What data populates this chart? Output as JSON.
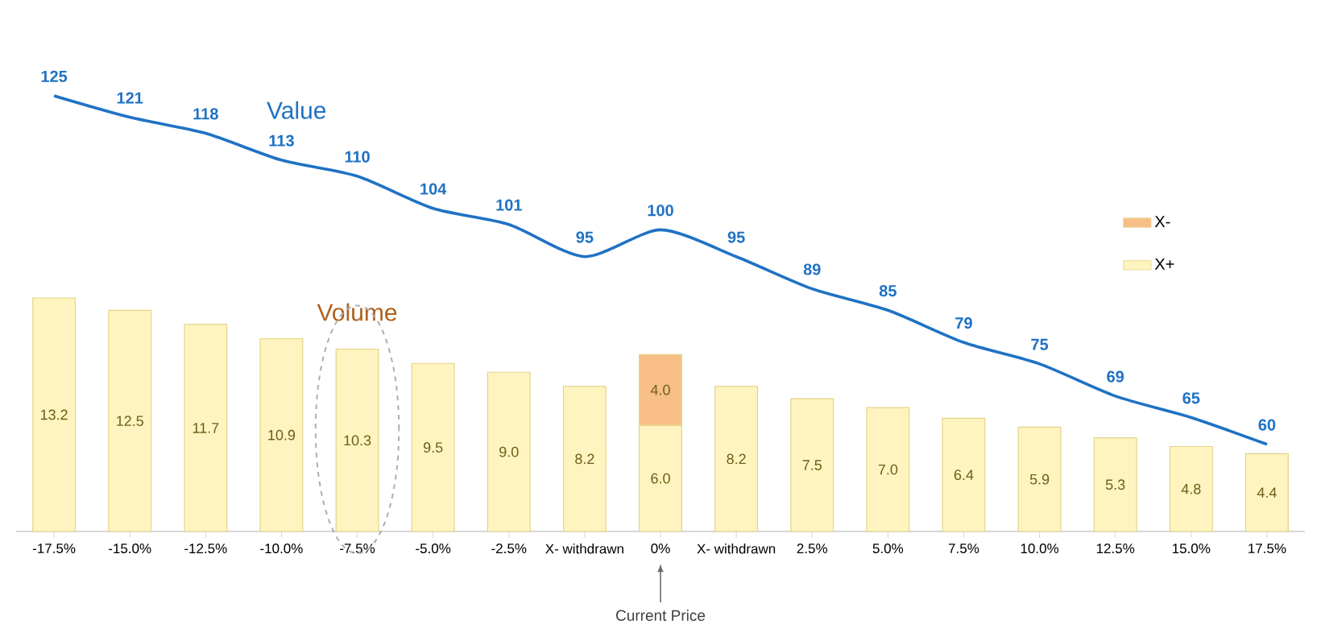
{
  "chart_data": {
    "type": "bar",
    "stacked": true,
    "legend": "right",
    "categories": [
      "-17.5%",
      "-15.0%",
      "-12.5%",
      "-10.0%",
      "-7.5%",
      "-5.0%",
      "-2.5%",
      "X- withdrawn",
      "0%",
      "X- withdrawn",
      "2.5%",
      "5.0%",
      "7.5%",
      "10.0%",
      "12.5%",
      "15.0%",
      "17.5%"
    ],
    "series": [
      {
        "name": "X+",
        "color": "#fff4bf",
        "values": [
          13.2,
          12.5,
          11.7,
          10.9,
          10.3,
          9.5,
          9.0,
          8.2,
          6.0,
          8.2,
          7.5,
          7.0,
          6.4,
          5.9,
          5.3,
          4.8,
          4.4
        ],
        "value_labels": [
          "13.2",
          "12.5",
          "11.7",
          "10.9",
          "10.3",
          "9.5",
          "9.0",
          "8.2",
          "6.0",
          "8.2",
          "7.5",
          "7.0",
          "6.4",
          "5.9",
          "5.3",
          "4.8",
          "4.4"
        ]
      },
      {
        "name": "X-",
        "color": "#f7bf86",
        "values": [
          null,
          null,
          null,
          null,
          null,
          null,
          null,
          null,
          4.0,
          null,
          null,
          null,
          null,
          null,
          null,
          null,
          null
        ],
        "value_labels": [
          null,
          null,
          null,
          null,
          null,
          null,
          null,
          null,
          "4.0",
          null,
          null,
          null,
          null,
          null,
          null,
          null,
          null
        ]
      },
      {
        "name": "Value",
        "type": "line",
        "axis": "y2",
        "color": "#1f72c4",
        "values": [
          125,
          121,
          118,
          113,
          110,
          104,
          101,
          95,
          100,
          95,
          89,
          85,
          79,
          75,
          69,
          65,
          60
        ],
        "value_labels": [
          "125",
          "121",
          "118",
          "113",
          "110",
          "104",
          "101",
          "95",
          "100",
          "95",
          "89",
          "85",
          "79",
          "75",
          "69",
          "65",
          "60"
        ]
      }
    ],
    "annotations": [
      "Volume",
      "Current Price"
    ]
  }
}
